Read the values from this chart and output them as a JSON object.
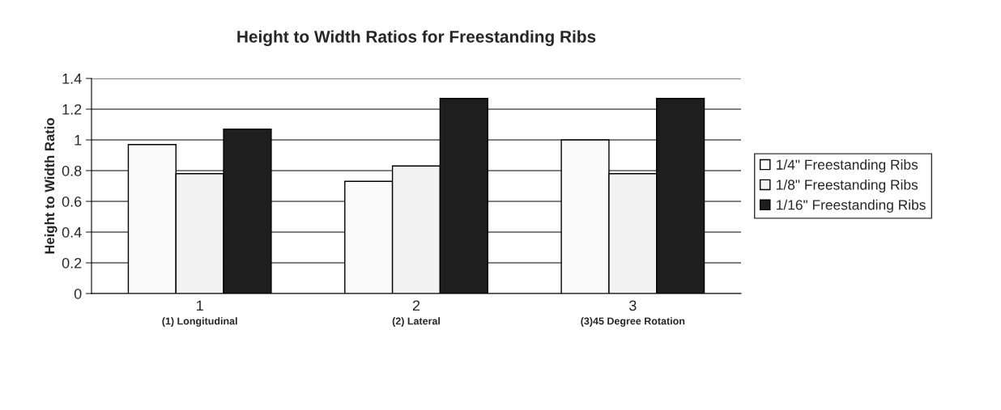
{
  "chart_data": {
    "type": "bar",
    "title": "Height to Width Ratios for Freestanding Ribs",
    "ylabel": "Height to Width Ratio",
    "categories": [
      "1\n(1) Longitudinal",
      "2\n(2) Lateral",
      "3\n(3)45 Degree Rotation"
    ],
    "series": [
      {
        "name": "1/4\" Freestanding Ribs",
        "color": "#fafafa",
        "values": [
          0.97,
          0.73,
          1.0
        ]
      },
      {
        "name": "1/8\" Freestanding Ribs",
        "color": "#f2f2f2",
        "values": [
          0.78,
          0.83,
          0.78
        ]
      },
      {
        "name": "1/16\" Freestanding Ribs",
        "color": "#1e1e1e",
        "values": [
          1.07,
          1.27,
          1.27
        ]
      }
    ],
    "ylim": [
      0,
      1.4
    ],
    "yticks": [
      0,
      0.2,
      0.4,
      0.6,
      0.8,
      1,
      1.2,
      1.4
    ],
    "grid": "y",
    "legend": "right"
  }
}
